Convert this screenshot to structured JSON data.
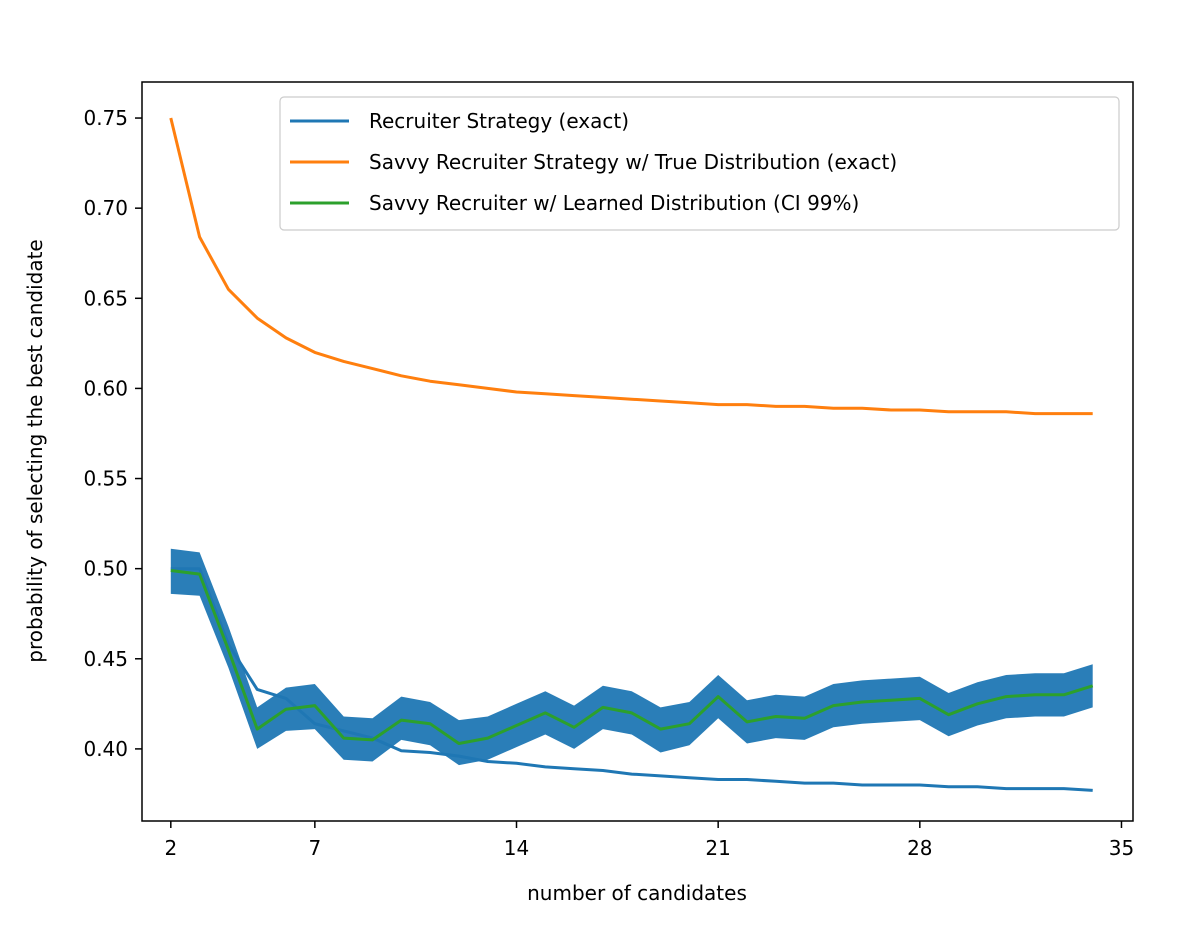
{
  "chart_data": {
    "type": "line",
    "xlabel": "number of candidates",
    "ylabel": "probability of selecting the best candidate",
    "xlim": [
      1,
      35.4
    ],
    "ylim": [
      0.36,
      0.77
    ],
    "xticks": [
      2,
      7,
      14,
      21,
      28,
      35
    ],
    "yticks": [
      0.4,
      0.45,
      0.5,
      0.55,
      0.6,
      0.65,
      0.7,
      0.75
    ],
    "ytick_labels": [
      "0.40",
      "0.45",
      "0.50",
      "0.55",
      "0.60",
      "0.65",
      "0.70",
      "0.75"
    ],
    "grid": false,
    "legend_position": "upper-right",
    "x": [
      2,
      3,
      4,
      5,
      6,
      7,
      8,
      9,
      10,
      11,
      12,
      13,
      14,
      15,
      16,
      17,
      18,
      19,
      20,
      21,
      22,
      23,
      24,
      25,
      26,
      27,
      28,
      29,
      30,
      31,
      32,
      33,
      34
    ],
    "series": [
      {
        "name": "Recruiter Strategy (exact)",
        "color": "#1f77b4",
        "values": [
          0.5,
          0.5,
          0.458,
          0.433,
          0.428,
          0.414,
          0.41,
          0.406,
          0.399,
          0.398,
          0.396,
          0.393,
          0.392,
          0.39,
          0.389,
          0.388,
          0.386,
          0.385,
          0.384,
          0.383,
          0.383,
          0.382,
          0.381,
          0.381,
          0.38,
          0.38,
          0.38,
          0.379,
          0.379,
          0.378,
          0.378,
          0.378,
          0.377
        ]
      },
      {
        "name": "Savvy Recruiter Strategy w/ True Distribution (exact)",
        "color": "#ff7f0e",
        "values": [
          0.75,
          0.684,
          0.655,
          0.639,
          0.628,
          0.62,
          0.615,
          0.611,
          0.607,
          0.604,
          0.602,
          0.6,
          0.598,
          0.597,
          0.596,
          0.595,
          0.594,
          0.593,
          0.592,
          0.591,
          0.591,
          0.59,
          0.59,
          0.589,
          0.589,
          0.588,
          0.588,
          0.587,
          0.587,
          0.587,
          0.586,
          0.586,
          0.586
        ]
      },
      {
        "name": "Savvy Recruiter w/ Learned Distribution (CI 99%)",
        "color": "#2ca02c",
        "band_color": "#1f77b4",
        "values": [
          0.499,
          0.497,
          0.455,
          0.411,
          0.422,
          0.424,
          0.406,
          0.405,
          0.416,
          0.414,
          0.403,
          0.406,
          0.413,
          0.42,
          0.412,
          0.423,
          0.42,
          0.411,
          0.414,
          0.429,
          0.415,
          0.418,
          0.417,
          0.424,
          0.426,
          0.427,
          0.428,
          0.419,
          0.425,
          0.429,
          0.43,
          0.43,
          0.435
        ],
        "lower": [
          0.486,
          0.485,
          0.445,
          0.4,
          0.41,
          0.411,
          0.394,
          0.393,
          0.405,
          0.402,
          0.391,
          0.394,
          0.401,
          0.408,
          0.4,
          0.411,
          0.408,
          0.398,
          0.402,
          0.417,
          0.403,
          0.406,
          0.405,
          0.412,
          0.414,
          0.415,
          0.416,
          0.407,
          0.413,
          0.417,
          0.418,
          0.418,
          0.423
        ],
        "upper": [
          0.511,
          0.509,
          0.468,
          0.423,
          0.434,
          0.436,
          0.418,
          0.417,
          0.429,
          0.426,
          0.416,
          0.418,
          0.425,
          0.432,
          0.424,
          0.435,
          0.432,
          0.423,
          0.426,
          0.441,
          0.427,
          0.43,
          0.429,
          0.436,
          0.438,
          0.439,
          0.44,
          0.431,
          0.437,
          0.441,
          0.442,
          0.442,
          0.447
        ]
      }
    ]
  }
}
